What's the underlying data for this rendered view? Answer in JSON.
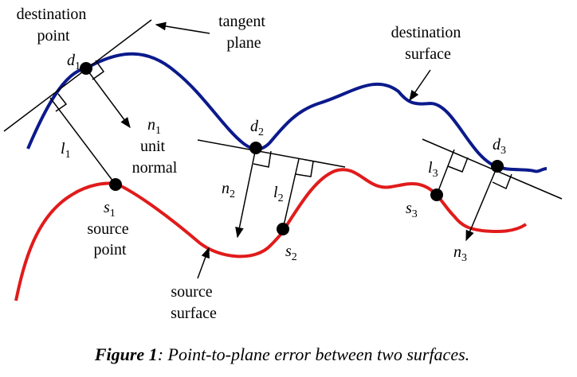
{
  "labels": {
    "destination_point": [
      "destination",
      "point"
    ],
    "d1": {
      "base": "d",
      "sub": "1"
    },
    "tangent_plane": [
      "tangent",
      "plane"
    ],
    "destination_surface": [
      "destination",
      "surface"
    ],
    "n1": {
      "base": "n",
      "sub": "1"
    },
    "unit_normal": [
      "unit",
      "normal"
    ],
    "l1": {
      "base": "l",
      "sub": "1"
    },
    "d2": {
      "base": "d",
      "sub": "2"
    },
    "n2": {
      "base": "n",
      "sub": "2"
    },
    "l2": {
      "base": "l",
      "sub": "2"
    },
    "s1": {
      "base": "s",
      "sub": "1"
    },
    "source_point": [
      "source",
      "point"
    ],
    "s2": {
      "base": "s",
      "sub": "2"
    },
    "source_surface": [
      "source",
      "surface"
    ],
    "l3": {
      "base": "l",
      "sub": "3"
    },
    "d3": {
      "base": "d",
      "sub": "3"
    },
    "s3": {
      "base": "s",
      "sub": "3"
    },
    "n3": {
      "base": "n",
      "sub": "3"
    }
  },
  "caption": {
    "bold": "Figure 1",
    "text": ": Point-to-plane error between two surfaces."
  },
  "colors": {
    "destination_surface": "#0b1a8c",
    "source_surface": "#e11b1b",
    "lines": "#000000"
  }
}
